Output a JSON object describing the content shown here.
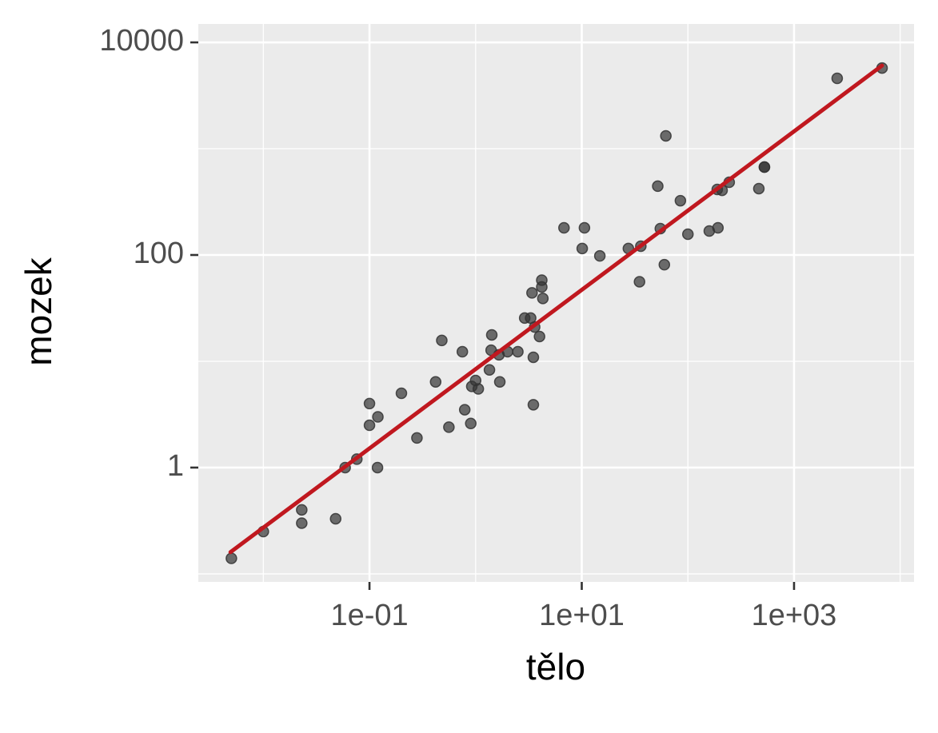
{
  "chart_data": {
    "type": "scatter",
    "x_label": "tělo",
    "y_label": "mozek",
    "xlog": true,
    "ylog": true,
    "grid": true,
    "xlim": [
      0.00244,
      13500
    ],
    "ylim": [
      0.084,
      14900
    ],
    "xticks": [
      {
        "value": 0.1,
        "label": "1e-01"
      },
      {
        "value": 10,
        "label": "1e+01"
      },
      {
        "value": 1000,
        "label": "1e+03"
      }
    ],
    "yticks": [
      1,
      100,
      10000
    ],
    "xminor": [
      0.01,
      1,
      100,
      10000
    ],
    "yminor": [
      0.1,
      10,
      1000
    ],
    "color": "#333333",
    "x": [
      0.005,
      0.01,
      0.023,
      0.023,
      0.048,
      0.059,
      0.076,
      0.119,
      0.1,
      0.1,
      0.12,
      0.2,
      0.28,
      0.42,
      0.48,
      0.56,
      0.75,
      0.79,
      0.9,
      0.92,
      1.0,
      1.06,
      1.35,
      1.4,
      1.42,
      1.66,
      1.69,
      2.0,
      2.5,
      2.9,
      3.3,
      3.4,
      3.5,
      3.5,
      3.6,
      4.0,
      4.2,
      4.2,
      4.3,
      6.8,
      10.1,
      10.6,
      14.8,
      27.5,
      35,
      36,
      52,
      55,
      60,
      62,
      85,
      100,
      159,
      192,
      189,
      210,
      245,
      466,
      526,
      526,
      2550,
      6750
    ],
    "y": [
      0.14,
      0.25,
      0.4,
      0.3,
      0.33,
      1,
      1.2,
      1,
      4,
      2.5,
      3,
      5,
      1.9,
      6.4,
      15.7,
      2.4,
      12.3,
      3.5,
      2.6,
      5.8,
      6.6,
      5.5,
      8.3,
      12.7,
      17.7,
      11.5,
      6.4,
      12.3,
      12.3,
      25.5,
      25.5,
      44,
      10.9,
      3.9,
      21,
      17.1,
      58,
      50,
      39,
      180,
      115,
      180,
      98,
      115,
      56,
      121,
      444,
      177,
      81,
      1320,
      324,
      157,
      168,
      180,
      414,
      406,
      483,
      421,
      671,
      671,
      4590,
      5740
    ],
    "fit": {
      "color": "#c0181f",
      "x": [
        0.0049,
        6750
      ],
      "y": [
        0.16,
        6050
      ]
    }
  }
}
